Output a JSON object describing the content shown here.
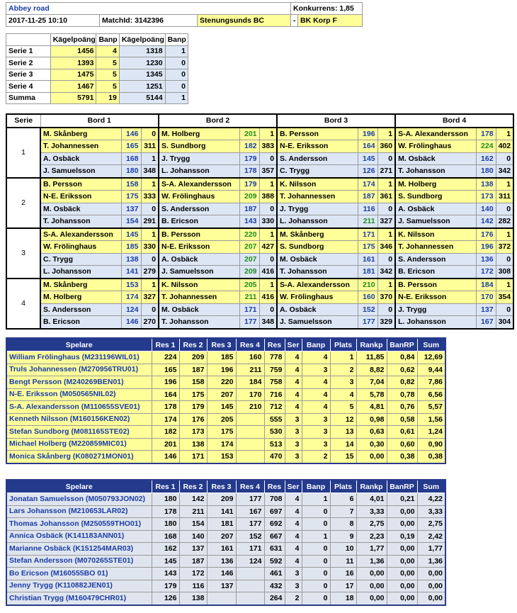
{
  "header": {
    "title": "Abbey road",
    "competition": "Konkurrens: 1,85",
    "datetime": "2017-11-25 10:10",
    "match_id": "MatchId: 3142396",
    "home": "Stenungsunds BC",
    "separator": "-",
    "away": "BK Korp F"
  },
  "summary": {
    "columns": [
      "Kägelpoäng",
      "Banp",
      "Kägelpoäng",
      "Banp"
    ],
    "rows": [
      [
        "Serie 1",
        1456,
        4,
        1318,
        1
      ],
      [
        "Serie 2",
        1393,
        5,
        1230,
        0
      ],
      [
        "Serie 3",
        1475,
        5,
        1345,
        0
      ],
      [
        "Serie 4",
        1467,
        5,
        1251,
        0
      ],
      [
        "Summa",
        5791,
        19,
        5144,
        1
      ]
    ]
  },
  "bord": {
    "columns": [
      "Serie",
      "Bord 1",
      "Bord 2",
      "Bord 3",
      "Bord 4"
    ],
    "series": [
      {
        "label": "1",
        "tables": [
          [
            [
              "M. Skånberg",
              146,
              0
            ],
            [
              "T. Johannessen",
              165,
              311
            ],
            [
              "A. Osbäck",
              168,
              1
            ],
            [
              "J. Samuelsson",
              180,
              348
            ]
          ],
          [
            [
              "M. Holberg",
              201,
              1
            ],
            [
              "S. Sundborg",
              182,
              383
            ],
            [
              "J. Trygg",
              179,
              0
            ],
            [
              "L. Johansson",
              178,
              357
            ]
          ],
          [
            [
              "B. Persson",
              196,
              1
            ],
            [
              "N-E. Eriksson",
              164,
              360
            ],
            [
              "S. Andersson",
              145,
              0
            ],
            [
              "C. Trygg",
              126,
              271
            ]
          ],
          [
            [
              "S-A. Alexandersson",
              178,
              1
            ],
            [
              "W. Frölinghaus",
              224,
              402
            ],
            [
              "M. Osbäck",
              162,
              0
            ],
            [
              "T. Johansson",
              180,
              342
            ]
          ]
        ]
      },
      {
        "label": "2",
        "tables": [
          [
            [
              "B. Persson",
              158,
              1
            ],
            [
              "N-E. Eriksson",
              175,
              333
            ],
            [
              "M. Osbäck",
              137,
              0
            ],
            [
              "T. Johansson",
              154,
              291
            ]
          ],
          [
            [
              "S-A. Alexandersson",
              179,
              1
            ],
            [
              "W. Frölinghaus",
              209,
              388
            ],
            [
              "S. Andersson",
              187,
              0
            ],
            [
              "B. Ericson",
              143,
              330
            ]
          ],
          [
            [
              "K. Nilsson",
              174,
              1
            ],
            [
              "T. Johannessen",
              187,
              361
            ],
            [
              "J. Trygg",
              116,
              0
            ],
            [
              "L. Johansson",
              211,
              327
            ]
          ],
          [
            [
              "M. Holberg",
              138,
              1
            ],
            [
              "S. Sundborg",
              173,
              311
            ],
            [
              "A. Osbäck",
              140,
              0
            ],
            [
              "J. Samuelsson",
              142,
              282
            ]
          ]
        ]
      },
      {
        "label": "3",
        "tables": [
          [
            [
              "S-A. Alexandersson",
              145,
              1
            ],
            [
              "W. Frölinghaus",
              185,
              330
            ],
            [
              "C. Trygg",
              138,
              0
            ],
            [
              "L. Johansson",
              141,
              279
            ]
          ],
          [
            [
              "B. Persson",
              220,
              1
            ],
            [
              "N-E. Eriksson",
              207,
              427
            ],
            [
              "A. Osbäck",
              207,
              0
            ],
            [
              "J. Samuelsson",
              209,
              416
            ]
          ],
          [
            [
              "M. Skånberg",
              171,
              1
            ],
            [
              "S. Sundborg",
              175,
              346
            ],
            [
              "M. Osbäck",
              161,
              0
            ],
            [
              "T. Johansson",
              181,
              342
            ]
          ],
          [
            [
              "K. Nilsson",
              176,
              1
            ],
            [
              "T. Johannessen",
              196,
              372
            ],
            [
              "S. Andersson",
              136,
              0
            ],
            [
              "B. Ericson",
              172,
              308
            ]
          ]
        ]
      },
      {
        "label": "4",
        "tables": [
          [
            [
              "M. Skånberg",
              153,
              1
            ],
            [
              "M. Holberg",
              174,
              327
            ],
            [
              "S. Andersson",
              124,
              0
            ],
            [
              "B. Ericson",
              146,
              270
            ]
          ],
          [
            [
              "K. Nilsson",
              205,
              1
            ],
            [
              "T. Johannessen",
              211,
              416
            ],
            [
              "M. Osbäck",
              171,
              0
            ],
            [
              "T. Johansson",
              177,
              348
            ]
          ],
          [
            [
              "S-A. Alexandersson",
              210,
              1
            ],
            [
              "W. Frölinghaus",
              160,
              370
            ],
            [
              "A. Osbäck",
              152,
              0
            ],
            [
              "J. Samuelsson",
              177,
              329
            ]
          ],
          [
            [
              "B. Persson",
              184,
              1
            ],
            [
              "N-E. Eriksson",
              170,
              354
            ],
            [
              "J. Trygg",
              137,
              0
            ],
            [
              "L. Johansson",
              167,
              304
            ]
          ]
        ]
      }
    ]
  },
  "players": [
    {
      "columns": [
        "Spelare",
        "Res 1",
        "Res 2",
        "Res 3",
        "Res 4",
        "Res",
        "Ser",
        "Banp",
        "Plats",
        "Rankp",
        "BanRP",
        "Sum"
      ],
      "rows": [
        [
          "William Frölinghaus (M231196WIL01)",
          224,
          209,
          185,
          160,
          778,
          4,
          4,
          1,
          "11,85",
          "0,84",
          "12,69"
        ],
        [
          "Truls Johannessen (M270956TRU01)",
          165,
          187,
          196,
          211,
          759,
          4,
          3,
          2,
          "8,82",
          "0,62",
          "9,44"
        ],
        [
          "Bengt Persson (M240269BEN01)",
          196,
          158,
          220,
          184,
          758,
          4,
          4,
          3,
          "7,04",
          "0,82",
          "7,86"
        ],
        [
          "N-E. Eriksson (M050565NIL02)",
          164,
          175,
          207,
          170,
          716,
          4,
          4,
          4,
          "5,78",
          "0,78",
          "6,56"
        ],
        [
          "S-A. Alexandersson (M110655SVE01)",
          178,
          179,
          145,
          210,
          712,
          4,
          4,
          5,
          "4,81",
          "0,76",
          "5,57"
        ],
        [
          "Kenneth Nilsson (M160156KEN02)",
          174,
          176,
          205,
          null,
          555,
          3,
          3,
          12,
          "0,98",
          "0,58",
          "1,56"
        ],
        [
          "Stefan Sundborg (M081165STE02)",
          182,
          173,
          175,
          null,
          530,
          3,
          3,
          13,
          "0,63",
          "0,61",
          "1,24"
        ],
        [
          "Michael Holberg (M220859MIC01)",
          201,
          138,
          174,
          null,
          513,
          3,
          3,
          14,
          "0,30",
          "0,60",
          "0,90"
        ],
        [
          "Monica Skånberg (K080271MON01)",
          146,
          171,
          153,
          null,
          470,
          3,
          2,
          15,
          "0,00",
          "0,38",
          "0,38"
        ]
      ]
    },
    {
      "columns": [
        "Spelare",
        "Res 1",
        "Res 2",
        "Res 3",
        "Res 4",
        "Res",
        "Ser",
        "Banp",
        "Plats",
        "Rankp",
        "BanRP",
        "Sum"
      ],
      "rows": [
        [
          "Jonatan Samuelsson (M050793JON02)",
          180,
          142,
          209,
          177,
          708,
          4,
          1,
          6,
          "4,01",
          "0,21",
          "4,22"
        ],
        [
          "Lars Johansson (M210653LAR02)",
          178,
          211,
          141,
          167,
          697,
          4,
          0,
          7,
          "3,33",
          "0,00",
          "3,33"
        ],
        [
          "Thomas Johansson (M250559THO01)",
          180,
          154,
          181,
          177,
          692,
          4,
          0,
          8,
          "2,75",
          "0,00",
          "2,75"
        ],
        [
          "Annica Osbäck (K141183ANN01)",
          168,
          140,
          207,
          152,
          667,
          4,
          1,
          9,
          "2,23",
          "0,19",
          "2,42"
        ],
        [
          "Marianne Osbäck (K151254MAR03)",
          162,
          137,
          161,
          171,
          631,
          4,
          0,
          10,
          "1,77",
          "0,00",
          "1,77"
        ],
        [
          "Stefan Andersson (M070265STE01)",
          145,
          187,
          136,
          124,
          592,
          4,
          0,
          11,
          "1,36",
          "0,00",
          "1,36"
        ],
        [
          "Bo Ericson (M160555BO 01)",
          143,
          172,
          146,
          null,
          461,
          3,
          0,
          16,
          "0,00",
          "0,00",
          "0,00"
        ],
        [
          "Jenny Trygg (K110882JEN01)",
          179,
          116,
          137,
          null,
          432,
          3,
          0,
          17,
          "0,00",
          "0,00",
          "0,00"
        ],
        [
          "Christian Trygg (M160479CHR01)",
          126,
          138,
          null,
          null,
          264,
          2,
          0,
          18,
          "0,00",
          "0,00",
          "0,00"
        ]
      ]
    }
  ]
}
